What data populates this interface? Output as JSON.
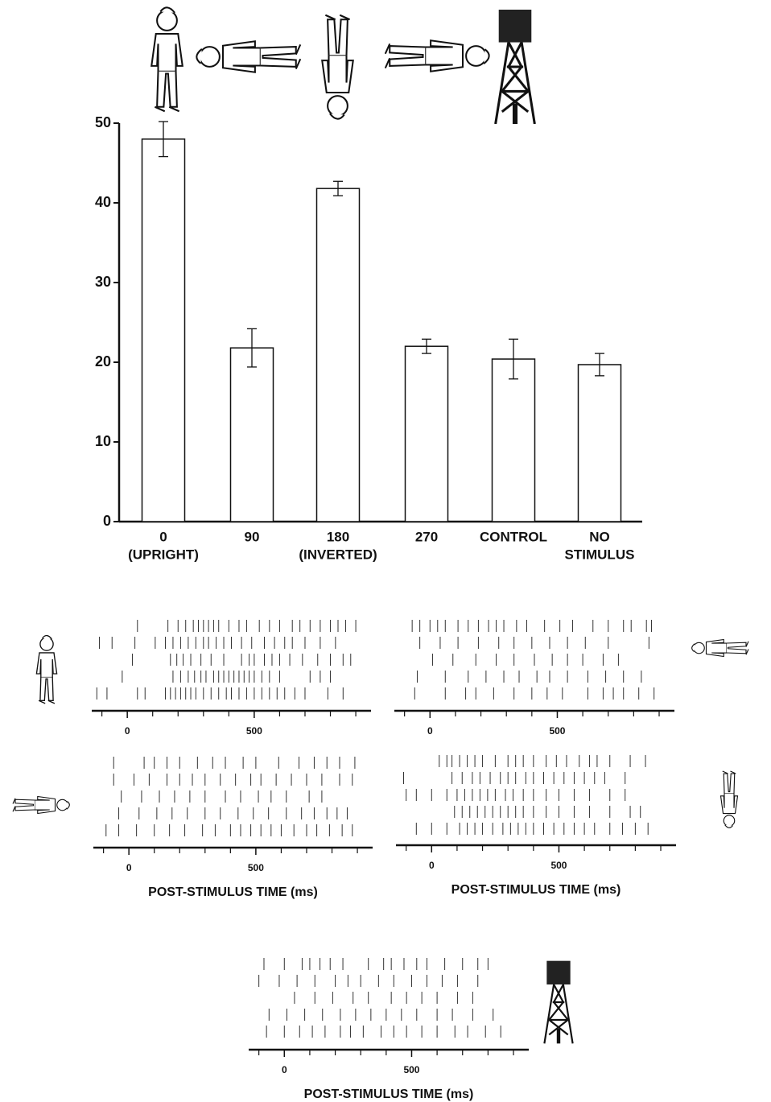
{
  "chart_data": [
    {
      "type": "bar",
      "categories": [
        [
          "0",
          "(UPRIGHT)"
        ],
        [
          "90"
        ],
        [
          "180",
          "(INVERTED)"
        ],
        [
          "270"
        ],
        [
          "CONTROL"
        ],
        [
          "NO",
          "STIMULUS"
        ]
      ],
      "values": [
        48,
        21.8,
        41.8,
        22,
        20.4,
        19.7
      ],
      "errors": [
        2.2,
        2.4,
        0.9,
        0.9,
        2.5,
        1.4
      ],
      "color": "#ffffff",
      "ylim": [
        0,
        50
      ],
      "yticks": [
        0,
        10,
        20,
        30,
        40,
        50
      ]
    },
    {
      "type": "raster",
      "xlim": [
        -140,
        960
      ],
      "xticks": [
        0,
        500
      ],
      "minor_xticks": [
        -100,
        100,
        200,
        300,
        400,
        600,
        700,
        800,
        900
      ],
      "trials": [
        [
          40,
          160,
          200,
          230,
          260,
          280,
          300,
          320,
          340,
          360,
          400,
          440,
          470,
          520,
          560,
          600,
          650,
          680,
          720,
          760,
          800,
          830,
          860,
          900
        ],
        [
          -110,
          -60,
          30,
          110,
          150,
          180,
          210,
          240,
          270,
          300,
          320,
          350,
          380,
          410,
          450,
          490,
          540,
          580,
          620,
          650,
          700,
          760,
          820
        ],
        [
          20,
          170,
          195,
          220,
          250,
          290,
          330,
          380,
          450,
          480,
          500,
          540,
          570,
          600,
          640,
          690,
          750,
          800,
          850,
          880
        ],
        [
          -20,
          180,
          210,
          240,
          265,
          290,
          310,
          340,
          360,
          380,
          400,
          420,
          440,
          460,
          480,
          500,
          530,
          560,
          600,
          720,
          760,
          800
        ],
        [
          -120,
          -80,
          40,
          70,
          150,
          170,
          190,
          210,
          230,
          250,
          270,
          300,
          330,
          360,
          390,
          410,
          440,
          470,
          500,
          530,
          560,
          590,
          620,
          660,
          700,
          790,
          850
        ]
      ]
    },
    {
      "type": "raster",
      "xlim": [
        -140,
        960
      ],
      "xticks": [
        0,
        500
      ],
      "minor_xticks": [
        -100,
        100,
        200,
        300,
        400,
        600,
        700,
        800,
        900
      ],
      "trials": [
        [
          -70,
          -40,
          0,
          30,
          60,
          110,
          150,
          190,
          230,
          260,
          290,
          340,
          380,
          450,
          510,
          560,
          640,
          700,
          760,
          790,
          850,
          870
        ],
        [
          -40,
          40,
          110,
          190,
          270,
          330,
          400,
          470,
          540,
          610,
          700,
          860
        ],
        [
          10,
          90,
          180,
          260,
          330,
          410,
          480,
          540,
          600,
          680,
          740
        ],
        [
          -50,
          60,
          150,
          220,
          290,
          350,
          420,
          470,
          540,
          620,
          690,
          760,
          830
        ],
        [
          -60,
          60,
          140,
          180,
          250,
          330,
          400,
          460,
          520,
          620,
          680,
          720,
          760,
          820,
          880
        ]
      ]
    },
    {
      "type": "raster",
      "xlim": [
        -140,
        960
      ],
      "xticks": [
        0,
        500
      ],
      "minor_xticks": [
        -100,
        100,
        200,
        300,
        400,
        600,
        700,
        800,
        900
      ],
      "x_label": "POST-STIMULUS TIME (ms)",
      "trials": [
        [
          -60,
          60,
          100,
          150,
          200,
          270,
          330,
          380,
          450,
          500,
          590,
          670,
          730,
          780,
          830,
          890
        ],
        [
          -60,
          20,
          80,
          150,
          200,
          250,
          300,
          360,
          420,
          480,
          520,
          580,
          640,
          700,
          760,
          830,
          880
        ],
        [
          -30,
          50,
          120,
          180,
          240,
          300,
          380,
          440,
          510,
          560,
          620,
          710,
          760
        ],
        [
          -40,
          40,
          110,
          170,
          230,
          300,
          360,
          430,
          490,
          550,
          620,
          680,
          730,
          780,
          820,
          860
        ],
        [
          -90,
          -40,
          30,
          100,
          160,
          220,
          290,
          340,
          400,
          440,
          480,
          520,
          560,
          600,
          650,
          700,
          740,
          790,
          840,
          880
        ]
      ]
    },
    {
      "type": "raster",
      "xlim": [
        -140,
        960
      ],
      "xticks": [
        0,
        500
      ],
      "minor_xticks": [
        -100,
        100,
        200,
        300,
        400,
        600,
        700,
        800,
        900
      ],
      "x_label": "POST-STIMULUS TIME (ms)",
      "trials": [
        [
          30,
          60,
          80,
          110,
          140,
          170,
          200,
          250,
          300,
          330,
          360,
          400,
          450,
          490,
          530,
          580,
          620,
          650,
          700,
          780,
          840
        ],
        [
          -110,
          80,
          120,
          160,
          190,
          230,
          270,
          300,
          330,
          370,
          400,
          440,
          480,
          520,
          560,
          600,
          640,
          680,
          760
        ],
        [
          -100,
          -60,
          0,
          60,
          100,
          130,
          160,
          190,
          220,
          250,
          290,
          320,
          360,
          400,
          450,
          500,
          560,
          620,
          700,
          760
        ],
        [
          90,
          120,
          150,
          180,
          210,
          240,
          270,
          300,
          330,
          360,
          400,
          450,
          500,
          560,
          620,
          700,
          780,
          820
        ],
        [
          -60,
          0,
          60,
          110,
          140,
          170,
          200,
          240,
          280,
          310,
          340,
          370,
          400,
          440,
          480,
          520,
          560,
          600,
          640,
          700,
          750,
          800,
          850
        ]
      ]
    },
    {
      "type": "raster",
      "xlim": [
        -140,
        960
      ],
      "xticks": [
        0,
        500
      ],
      "minor_xticks": [
        -100,
        100,
        200,
        300,
        400,
        600,
        700,
        800,
        900
      ],
      "x_label": "POST-STIMULUS TIME (ms)",
      "trials": [
        [
          -80,
          0,
          70,
          100,
          140,
          180,
          230,
          330,
          390,
          420,
          470,
          520,
          560,
          630,
          700,
          760,
          800
        ],
        [
          -100,
          -20,
          50,
          120,
          200,
          250,
          300,
          370,
          430,
          500,
          560,
          620,
          680,
          760
        ],
        [
          40,
          120,
          190,
          270,
          330,
          420,
          480,
          540,
          600,
          680,
          740
        ],
        [
          -60,
          10,
          80,
          150,
          220,
          280,
          340,
          400,
          460,
          520,
          600,
          660,
          740,
          820
        ],
        [
          -70,
          0,
          60,
          110,
          160,
          220,
          260,
          310,
          380,
          430,
          480,
          540,
          600,
          670,
          720,
          790,
          850
        ]
      ]
    }
  ]
}
